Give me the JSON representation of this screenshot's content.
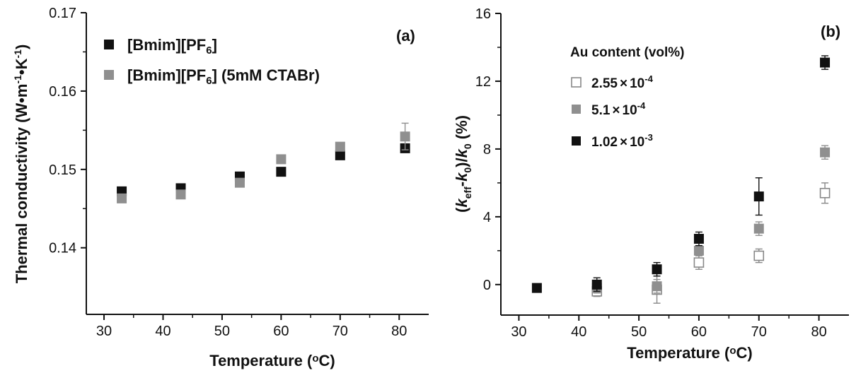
{
  "chart_data": [
    {
      "type": "scatter",
      "panel_label": "(a)",
      "xlabel": "Temperature (◦C)",
      "ylabel": "Thermal conductivity (W•m⁻¹•K⁻¹)",
      "xlim": [
        27,
        85
      ],
      "ylim": [
        0.1315,
        0.17
      ],
      "xticks": [
        "30",
        "40",
        "50",
        "60",
        "70",
        "80"
      ],
      "yticks": [
        "0.14",
        "0.15",
        "0.16",
        "0.17"
      ],
      "legend_position": "top-left",
      "series": [
        {
          "name": "[Bmim][PF6]",
          "color": "#111111",
          "marker": "filled-square",
          "x": [
            33,
            43,
            53,
            60,
            70,
            81
          ],
          "y": [
            0.1472,
            0.1476,
            0.1491,
            0.1497,
            0.1518,
            0.1527
          ],
          "err": [
            0.0005,
            0.0005,
            0.0005,
            0.0004,
            0.0005,
            0.0005
          ]
        },
        {
          "name": "[Bmim][PF6] (5mM CTABr)",
          "color": "#8f8f8f",
          "marker": "filled-square",
          "x": [
            33,
            43,
            53,
            60,
            70,
            81
          ],
          "y": [
            0.1463,
            0.1468,
            0.1483,
            0.1513,
            0.1529,
            0.1542
          ],
          "err": [
            0.0004,
            0.0004,
            0.0004,
            0.0004,
            0.0003,
            0.0017
          ]
        }
      ]
    },
    {
      "type": "scatter",
      "panel_label": "(b)",
      "xlabel": "Temperature (◦C)",
      "ylabel": "(keff-k0)/k0 (%)",
      "xlim": [
        27,
        85
      ],
      "ylim": [
        -1.8,
        16
      ],
      "xticks": [
        "30",
        "40",
        "50",
        "60",
        "70",
        "80"
      ],
      "yticks": [
        "0",
        "4",
        "8",
        "12",
        "16"
      ],
      "legend_title": "Au content (vol%)",
      "legend_position": "top-left",
      "series": [
        {
          "name": "2.55×10⁻⁴",
          "color": "#888888",
          "marker": "open-square",
          "x": [
            43,
            53,
            60,
            70,
            81
          ],
          "y": [
            -0.4,
            -0.3,
            1.3,
            1.7,
            5.4
          ],
          "err": [
            0.3,
            0.8,
            0.4,
            0.4,
            0.6
          ]
        },
        {
          "name": "5.1×10⁻⁴",
          "color": "#8f8f8f",
          "marker": "filled-square",
          "x": [
            43,
            53,
            60,
            70,
            81
          ],
          "y": [
            -0.2,
            -0.1,
            2.0,
            3.3,
            7.8
          ],
          "err": [
            0.3,
            0.4,
            0.3,
            0.4,
            0.4
          ]
        },
        {
          "name": "1.02×10⁻³",
          "color": "#111111",
          "marker": "filled-square",
          "x": [
            33,
            43,
            53,
            60,
            70,
            81
          ],
          "y": [
            -0.2,
            0.0,
            0.9,
            2.7,
            5.2,
            13.1
          ],
          "err": [
            0.0,
            0.4,
            0.4,
            0.4,
            1.1,
            0.4
          ]
        }
      ]
    }
  ]
}
